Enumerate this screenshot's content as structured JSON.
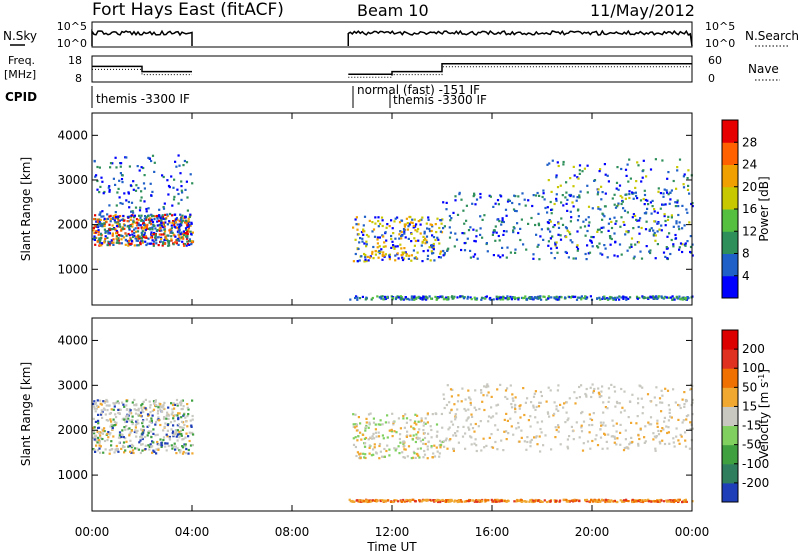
{
  "header": {
    "title": "Fort Hays East (fitACF)",
    "beam": "Beam 10",
    "date": "11/May/2012"
  },
  "chart_data": [
    {
      "type": "line",
      "panel": "noise",
      "ylabel_left": "N.Sky",
      "ylabel_right": "N.Search",
      "yticks_left": [
        "10^5",
        "10^0"
      ],
      "yticks_right": [
        "10^5",
        "10^0"
      ],
      "segments": [
        {
          "x_start": "00:00",
          "x_end": "04:00",
          "level": "high"
        },
        {
          "x_start": "10:15",
          "x_end": "24:00",
          "level": "high"
        }
      ]
    },
    {
      "type": "line",
      "panel": "frequency",
      "ylabel_left": "Freq.\n[MHz]",
      "ylabel_left_lines": [
        "Freq.",
        "[MHz]"
      ],
      "ylabel_right": "Nave",
      "yticks_left": [
        "18",
        "8"
      ],
      "yticks_right": [
        "60",
        "0"
      ],
      "series": [
        {
          "name": "Freq",
          "points": [
            [
              "00:00",
              14
            ],
            [
              "02:00",
              14
            ],
            [
              "02:00",
              12
            ],
            [
              "04:00",
              12
            ]
          ]
        },
        {
          "name": "Freq",
          "points": [
            [
              "10:15",
              11
            ],
            [
              "12:00",
              11
            ],
            [
              "12:00",
              12
            ],
            [
              "14:00",
              12
            ],
            [
              "14:00",
              15
            ],
            [
              "24:00",
              15
            ]
          ]
        }
      ]
    },
    {
      "type": "table",
      "panel": "cpid",
      "label": "CPID",
      "entries": [
        {
          "time": "00:00",
          "text": "themis -3300 IF"
        },
        {
          "time": "10:15",
          "text": "normal (fast) -151 IF"
        },
        {
          "time": "12:00",
          "text": "themis -3300 IF"
        }
      ]
    },
    {
      "type": "heatmap",
      "panel": "power",
      "ylabel": "Slant Range [km]",
      "xlim": [
        "00:00",
        "24:00"
      ],
      "ylim": [
        200,
        4500
      ],
      "yticks": [
        1000,
        2000,
        3000,
        4000
      ],
      "colorbar": {
        "label": "Power [dB]",
        "ticks": [
          "4",
          "8",
          "12",
          "16",
          "20",
          "24",
          "28"
        ],
        "colors": [
          "#0000ff",
          "#1e5fc8",
          "#2f8f5a",
          "#55c040",
          "#c8c800",
          "#f0a000",
          "#ff6000",
          "#e60000"
        ]
      }
    },
    {
      "type": "heatmap",
      "panel": "velocity",
      "ylabel": "Slant Range [km]",
      "xlabel": "Time UT",
      "xlim": [
        "00:00",
        "24:00"
      ],
      "ylim": [
        200,
        4500
      ],
      "yticks": [
        1000,
        2000,
        3000,
        4000
      ],
      "xticks": [
        "00:00",
        "04:00",
        "08:00",
        "12:00",
        "16:00",
        "20:00",
        "00:00"
      ],
      "colorbar": {
        "label": "Velocity [m s-1]",
        "label_parts": [
          "Velocity [m s",
          "-1",
          "]"
        ],
        "ticks": [
          "200",
          "100",
          "50",
          "15",
          "-15",
          "-50",
          "-100",
          "-200"
        ],
        "colors": [
          "#1f3fb8",
          "#2f7f5f",
          "#3fa040",
          "#80d060",
          "#c8c8c0",
          "#f0a830",
          "#f07000",
          "#e03020",
          "#dd0000"
        ]
      }
    }
  ]
}
